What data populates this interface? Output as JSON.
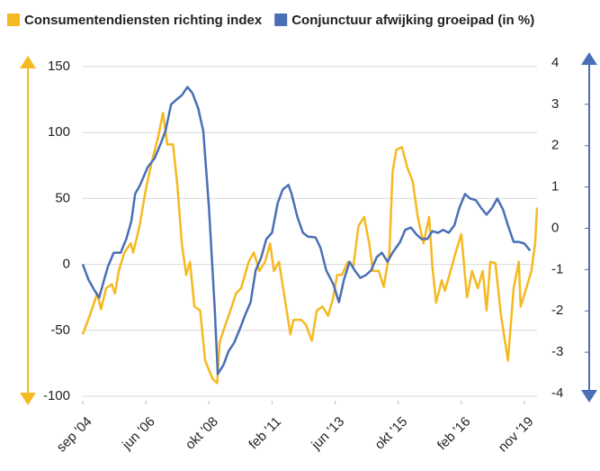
{
  "chart_data": {
    "type": "line",
    "series": [
      {
        "name": "Consumentendiensten richting index",
        "color": "#f5b921",
        "axis": "y",
        "x": [
          0,
          1.1,
          2.3,
          2.9,
          3.7,
          4.6,
          5.1,
          5.7,
          6.6,
          7.6,
          8,
          9,
          10,
          10.9,
          12,
          12.7,
          13.4,
          14.3,
          15,
          15.7,
          16.4,
          17,
          17.7,
          18.6,
          19.4,
          20.6,
          21.3,
          21.7,
          22.6,
          23.4,
          24.3,
          25.1,
          26.3,
          27.1,
          28,
          28.9,
          29.7,
          30.3,
          31.1,
          32,
          32.9,
          33.4,
          34.6,
          35.4,
          36.3,
          37.1,
          38,
          38.9,
          39.7,
          40.3,
          41.1,
          42,
          42.9,
          43.7,
          44.6,
          45.4,
          46,
          46.9,
          47.7,
          48.6,
          49.1,
          49.7,
          50.6,
          51.4,
          52.3,
          53.1,
          54,
          54.9,
          55.4,
          56,
          56.9,
          57.4,
          58.3,
          59.1,
          60,
          60.9,
          61.7,
          62.6,
          63.4,
          64,
          64.6,
          65.4,
          66.3,
          67.4,
          68.3,
          69.1,
          69.4,
          70.3,
          71.1,
          71.7,
          72
        ],
        "values": [
          -53,
          -39,
          -22,
          -34,
          -18,
          -15,
          -22,
          -5,
          9,
          16,
          9,
          29,
          57,
          77,
          98,
          115,
          91,
          91,
          60,
          16,
          -8,
          2,
          -32,
          -35,
          -73,
          -87,
          -90,
          -59,
          -46,
          -35,
          -22,
          -18,
          2,
          9,
          -5,
          2,
          16,
          -5,
          2,
          -25,
          -53,
          -42,
          -42,
          -46,
          -58,
          -35,
          -32,
          -39,
          -25,
          -8,
          -8,
          2,
          -1,
          29,
          36,
          16,
          -5,
          -5,
          -17,
          9,
          70,
          87,
          89,
          74,
          63,
          36,
          16,
          36,
          -1,
          -29,
          -12,
          -20,
          -5,
          9,
          23,
          -25,
          -5,
          -18,
          -5,
          -35,
          2,
          1,
          -39,
          -73,
          -18,
          2,
          -32,
          -18,
          -5,
          16,
          43
        ]
      },
      {
        "name": "Conjunctuur afwijking groeipad (in %)",
        "color": "#4a6fb5",
        "axis": "y2",
        "x": [
          0,
          0.9,
          1.7,
          2.6,
          3.4,
          4,
          4.9,
          6,
          6.9,
          7.7,
          8.3,
          9.1,
          10.3,
          11.4,
          12.3,
          13.1,
          14,
          14.9,
          15.7,
          16.6,
          17.4,
          18.3,
          19.1,
          20,
          20.9,
          21.4,
          22.3,
          23.1,
          24,
          24.9,
          25.7,
          26.6,
          27.4,
          28.3,
          29.1,
          30,
          30.9,
          31.7,
          32.6,
          33.1,
          34,
          34.9,
          35.7,
          36.9,
          37.7,
          38.6,
          39.7,
          40.6,
          41.4,
          42.3,
          43.1,
          44,
          44.9,
          45.7,
          46.6,
          47.4,
          48.3,
          49.1,
          50.3,
          51.1,
          52,
          52.9,
          53.7,
          54.6,
          55.4,
          56.3,
          57.1,
          58,
          58.9,
          59.7,
          60.6,
          61.4,
          62.3,
          63.1,
          64,
          64.9,
          65.7,
          66.6,
          67.4,
          68.3,
          69.1,
          70,
          70.9
        ],
        "values": [
          -0.87,
          -1.24,
          -1.46,
          -1.68,
          -1.24,
          -0.92,
          -0.59,
          -0.59,
          -0.26,
          0.17,
          0.83,
          1.05,
          1.48,
          1.7,
          2.03,
          2.35,
          3.0,
          3.12,
          3.22,
          3.42,
          3.27,
          2.9,
          2.35,
          0.5,
          -1.9,
          -3.53,
          -3.31,
          -2.98,
          -2.77,
          -2.44,
          -2.11,
          -1.79,
          -1.02,
          -0.7,
          -0.26,
          -0.11,
          0.61,
          0.94,
          1.05,
          0.83,
          0.28,
          -0.11,
          -0.2,
          -0.22,
          -0.48,
          -1.02,
          -1.35,
          -1.79,
          -1.24,
          -0.81,
          -1.02,
          -1.2,
          -1.13,
          -1.02,
          -0.7,
          -0.59,
          -0.81,
          -0.59,
          -0.33,
          -0.04,
          0.02,
          -0.15,
          -0.26,
          -0.26,
          -0.07,
          -0.11,
          -0.04,
          -0.11,
          0.07,
          0.5,
          0.83,
          0.72,
          0.68,
          0.5,
          0.33,
          0.5,
          0.72,
          0.46,
          0.07,
          -0.33,
          -0.33,
          -0.37,
          -0.54
        ]
      }
    ],
    "xlim": [
      0,
      72
    ],
    "xticks": [
      {
        "value": 0,
        "label": "sep '04"
      },
      {
        "value": 10,
        "label": "jun '06"
      },
      {
        "value": 20,
        "label": "okt '08"
      },
      {
        "value": 30,
        "label": "feb '11"
      },
      {
        "value": 40,
        "label": "jun '13"
      },
      {
        "value": 50,
        "label": "okt '15"
      },
      {
        "value": 60,
        "label": "feb '16"
      },
      {
        "value": 70,
        "label": "nov '19"
      }
    ],
    "ylim": [
      -100,
      150
    ],
    "yticks": [
      -100,
      -50,
      0,
      50,
      100,
      150
    ],
    "y2lim": [
      -4,
      4
    ],
    "y2ticks": [
      -4,
      -3,
      -2,
      -1,
      0,
      1,
      2,
      3,
      4
    ],
    "grid": true,
    "legend": "top"
  }
}
